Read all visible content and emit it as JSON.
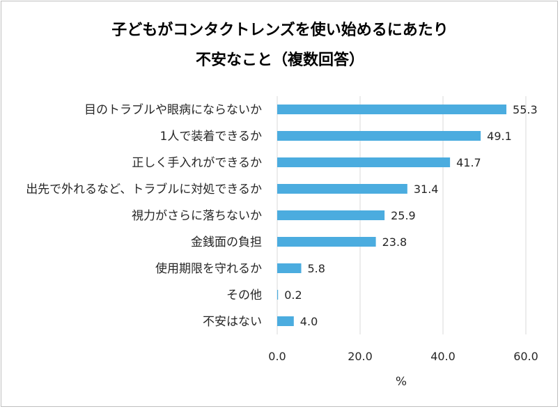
{
  "chart_data": {
    "type": "bar",
    "orientation": "horizontal",
    "title_lines": [
      "子どもがコンタクトレンズを使い始めるにあたり",
      "不安なこと（複数回答）"
    ],
    "categories": [
      "目のトラブルや眼病にならないか",
      "1人で装着できるか",
      "正しく手入れができるか",
      "出先で外れるなど、トラブルに対処できるか",
      "視力がさらに落ちないか",
      "金銭面の負担",
      "使用期限を守れるか",
      "その他",
      "不安はない"
    ],
    "values": [
      55.3,
      49.1,
      41.7,
      31.4,
      25.9,
      23.8,
      5.8,
      0.2,
      4.0
    ],
    "value_labels": [
      "55.3",
      "49.1",
      "41.7",
      "31.4",
      "25.9",
      "23.8",
      "5.8",
      "0.2",
      "4.0"
    ],
    "xlim": [
      0,
      60
    ],
    "xticks": [
      0,
      20,
      40,
      60
    ],
    "xtick_labels": [
      "0.0",
      "20.0",
      "40.0",
      "60.0"
    ],
    "xlabel": "%",
    "ylabel": "",
    "grid": "vertical",
    "legend": "none",
    "colors": {
      "bar": "#4bacdf",
      "grid": "#d9d9d9",
      "text": "#262626",
      "border": "#bfbfbf"
    }
  }
}
